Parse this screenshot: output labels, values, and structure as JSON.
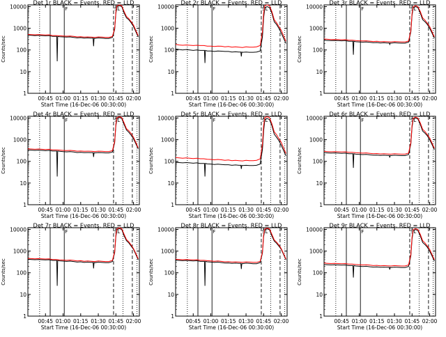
{
  "colors": {
    "events": "#000000",
    "lld": "#ff0000",
    "axes": "#000000",
    "background": "#ffffff"
  },
  "shared": {
    "ylabel": "Counts/sec",
    "xlabel": "Start Time (16-Dec-06 00:30:00)",
    "x_tick_labels": [
      "00:45",
      "01:00",
      "01:15",
      "01:30",
      "01:45",
      "02:00"
    ],
    "x_tick_values": [
      45,
      60,
      75,
      90,
      105,
      120
    ],
    "xlim": [
      30,
      125
    ],
    "y_tick_labels": [
      "1",
      "10",
      "100",
      "1000",
      "10000"
    ],
    "y_tick_values": [
      1,
      10,
      100,
      1000,
      10000
    ],
    "ylim": [
      1,
      12000
    ],
    "yscale": "log",
    "marker_labels": [
      "F",
      "SL"
    ],
    "markers": {
      "dotted": [
        40,
        111,
        123
      ],
      "solid": [
        49,
        61
      ],
      "dashed": [
        103,
        119
      ]
    },
    "times": [
      30,
      33,
      36,
      39,
      42,
      45,
      48,
      51,
      54,
      57,
      60,
      63,
      66,
      69,
      72,
      75,
      78,
      81,
      84,
      87,
      90,
      93,
      96,
      99,
      102,
      104,
      105,
      106,
      108,
      110,
      112,
      114,
      116,
      118,
      120,
      122,
      124
    ]
  },
  "chart_data": [
    {
      "type": "line",
      "title": "Det 1r BLACK = Events, RED = LLD",
      "tall": false,
      "series": [
        {
          "name": "Events",
          "values": [
            480,
            470,
            460,
            470,
            460,
            450,
            460,
            420,
            420,
            410,
            400,
            390,
            400,
            380,
            360,
            370,
            350,
            360,
            350,
            340,
            360,
            350,
            340,
            340,
            380,
            900,
            5000,
            10000,
            11000,
            10000,
            5000,
            3000,
            2500,
            1800,
            1200,
            700,
            400
          ]
        },
        {
          "name": "LLD",
          "values": [
            520,
            510,
            500,
            505,
            500,
            490,
            500,
            460,
            460,
            450,
            440,
            430,
            440,
            420,
            400,
            410,
            390,
            400,
            390,
            380,
            400,
            390,
            380,
            380,
            420,
            1000,
            6000,
            11000,
            12000,
            11000,
            6000,
            3500,
            2800,
            2000,
            1400,
            800,
            450
          ]
        }
      ],
      "dips": [
        [
          55,
          30
        ],
        [
          75,
          100
        ],
        [
          86,
          150
        ],
        [
          90,
          150
        ]
      ]
    },
    {
      "type": "line",
      "title": "Det 2r BLACK = Events, RED = LLD",
      "tall": true,
      "series": [
        {
          "name": "Events",
          "values": [
            110,
            105,
            100,
            105,
            100,
            95,
            100,
            95,
            95,
            90,
            90,
            85,
            90,
            88,
            85,
            85,
            80,
            82,
            80,
            78,
            80,
            78,
            78,
            80,
            90,
            400,
            3000,
            9000,
            10000,
            9000,
            5000,
            2000,
            1500,
            1000,
            600,
            350,
            200
          ]
        },
        {
          "name": "LLD",
          "values": [
            180,
            170,
            165,
            170,
            165,
            160,
            165,
            160,
            160,
            150,
            150,
            145,
            150,
            148,
            140,
            145,
            135,
            140,
            135,
            130,
            140,
            135,
            135,
            140,
            160,
            700,
            5000,
            11000,
            12000,
            11000,
            6000,
            2500,
            1800,
            1200,
            800,
            450,
            250
          ]
        }
      ],
      "dips": [
        [
          55,
          25
        ],
        [
          75,
          40
        ],
        [
          86,
          50
        ],
        [
          90,
          50
        ]
      ]
    },
    {
      "type": "line",
      "title": "Det 3r BLACK = Events, RED = LLD",
      "tall": false,
      "series": [
        {
          "name": "Events",
          "values": [
            280,
            275,
            270,
            275,
            270,
            265,
            270,
            250,
            250,
            240,
            235,
            230,
            235,
            225,
            215,
            220,
            210,
            215,
            210,
            205,
            215,
            210,
            205,
            205,
            230,
            700,
            4000,
            9000,
            10000,
            9000,
            5000,
            2500,
            2000,
            1500,
            1000,
            600,
            350
          ]
        },
        {
          "name": "LLD",
          "values": [
            320,
            310,
            300,
            305,
            300,
            295,
            300,
            280,
            280,
            270,
            265,
            260,
            265,
            255,
            245,
            250,
            240,
            245,
            240,
            235,
            245,
            240,
            235,
            235,
            260,
            800,
            5000,
            10000,
            11000,
            10000,
            6000,
            3000,
            2400,
            1700,
            1200,
            700,
            400
          ]
        }
      ],
      "dips": [
        [
          55,
          60
        ],
        [
          75,
          160
        ],
        [
          86,
          180
        ],
        [
          90,
          180
        ]
      ]
    },
    {
      "type": "line",
      "title": "Det 4r BLACK = Events, RED = LLD",
      "tall": false,
      "series": [
        {
          "name": "Events",
          "values": [
            340,
            330,
            320,
            330,
            320,
            310,
            320,
            300,
            300,
            290,
            280,
            275,
            280,
            270,
            255,
            260,
            250,
            255,
            250,
            245,
            255,
            250,
            245,
            245,
            270,
            750,
            4500,
            9500,
            10500,
            9500,
            5000,
            2800,
            2200,
            1600,
            1100,
            650,
            380
          ]
        },
        {
          "name": "LLD",
          "values": [
            380,
            370,
            360,
            370,
            360,
            350,
            360,
            340,
            340,
            330,
            320,
            315,
            320,
            310,
            295,
            300,
            290,
            295,
            290,
            285,
            295,
            290,
            285,
            285,
            310,
            850,
            5500,
            10500,
            11500,
            10500,
            6000,
            3200,
            2600,
            1900,
            1300,
            750,
            420
          ]
        }
      ],
      "dips": [
        [
          55,
          20
        ],
        [
          75,
          120
        ],
        [
          86,
          160
        ],
        [
          90,
          160
        ]
      ]
    },
    {
      "type": "line",
      "title": "Det 5r BLACK = Events, RED = LLD",
      "tall": true,
      "series": [
        {
          "name": "Events",
          "values": [
            90,
            88,
            85,
            88,
            85,
            82,
            85,
            80,
            80,
            76,
            75,
            72,
            74,
            72,
            70,
            70,
            66,
            68,
            66,
            64,
            66,
            64,
            64,
            66,
            75,
            350,
            2500,
            8500,
            9500,
            8500,
            4500,
            1800,
            1300,
            900,
            550,
            320,
            180
          ]
        },
        {
          "name": "LLD",
          "values": [
            150,
            145,
            140,
            145,
            140,
            135,
            140,
            132,
            132,
            125,
            122,
            118,
            122,
            118,
            112,
            115,
            108,
            112,
            108,
            105,
            112,
            108,
            108,
            112,
            130,
            600,
            4500,
            10500,
            11500,
            10500,
            5500,
            2300,
            1700,
            1100,
            750,
            420,
            230
          ]
        }
      ],
      "dips": [
        [
          55,
          20
        ],
        [
          75,
          35
        ],
        [
          86,
          45
        ],
        [
          90,
          45
        ]
      ]
    },
    {
      "type": "line",
      "title": "Det 6r BLACK = Events, RED = LLD",
      "tall": false,
      "series": [
        {
          "name": "Events",
          "values": [
            250,
            245,
            240,
            245,
            240,
            235,
            240,
            225,
            225,
            215,
            210,
            205,
            210,
            200,
            192,
            195,
            188,
            192,
            188,
            184,
            192,
            188,
            184,
            184,
            205,
            650,
            3800,
            9000,
            10000,
            9000,
            5000,
            2500,
            2000,
            1500,
            1000,
            600,
            350
          ]
        },
        {
          "name": "LLD",
          "values": [
            290,
            282,
            276,
            282,
            276,
            270,
            276,
            260,
            260,
            250,
            245,
            240,
            245,
            235,
            225,
            230,
            220,
            225,
            220,
            215,
            225,
            220,
            215,
            215,
            240,
            750,
            4800,
            10000,
            11000,
            10000,
            6000,
            3000,
            2400,
            1700,
            1200,
            700,
            400
          ]
        }
      ],
      "dips": [
        [
          55,
          50
        ],
        [
          75,
          130
        ],
        [
          86,
          150
        ],
        [
          90,
          150
        ]
      ]
    },
    {
      "type": "line",
      "title": "Det 7r BLACK = Events, RED = LLD",
      "tall": false,
      "series": [
        {
          "name": "Events",
          "values": [
            420,
            410,
            400,
            410,
            400,
            390,
            400,
            370,
            370,
            355,
            345,
            335,
            345,
            330,
            310,
            320,
            300,
            310,
            300,
            290,
            310,
            300,
            290,
            290,
            330,
            850,
            4800,
            9800,
            10800,
            9800,
            5000,
            3000,
            2400,
            1700,
            1200,
            700,
            400
          ]
        },
        {
          "name": "LLD",
          "values": [
            460,
            450,
            440,
            450,
            440,
            430,
            440,
            410,
            410,
            395,
            385,
            375,
            385,
            370,
            350,
            360,
            340,
            350,
            340,
            330,
            350,
            340,
            330,
            330,
            370,
            950,
            5800,
            10800,
            11800,
            10800,
            6000,
            3400,
            2700,
            1900,
            1300,
            780,
            440
          ]
        }
      ],
      "dips": [
        [
          55,
          25
        ],
        [
          75,
          140
        ],
        [
          86,
          160
        ],
        [
          90,
          160
        ]
      ]
    },
    {
      "type": "line",
      "title": "Det 8r BLACK = Events, RED = LLD",
      "tall": false,
      "series": [
        {
          "name": "Events",
          "values": [
            380,
            370,
            360,
            370,
            360,
            350,
            360,
            335,
            335,
            320,
            310,
            300,
            310,
            295,
            280,
            285,
            270,
            278,
            270,
            262,
            278,
            270,
            262,
            262,
            295,
            800,
            4600,
            9600,
            10600,
            9600,
            5000,
            2900,
            2300,
            1700,
            1200,
            700,
            400
          ]
        },
        {
          "name": "LLD",
          "values": [
            420,
            410,
            400,
            410,
            400,
            390,
            400,
            375,
            375,
            360,
            350,
            340,
            350,
            335,
            320,
            325,
            310,
            318,
            310,
            302,
            318,
            310,
            302,
            302,
            335,
            900,
            5600,
            10600,
            11600,
            10600,
            6000,
            3300,
            2600,
            1900,
            1300,
            760,
            430
          ]
        }
      ],
      "dips": [
        [
          55,
          25
        ],
        [
          75,
          130
        ],
        [
          86,
          150
        ],
        [
          90,
          150
        ]
      ]
    },
    {
      "type": "line",
      "title": "Det 9r BLACK = Events, RED = LLD",
      "tall": false,
      "series": [
        {
          "name": "Events",
          "values": [
            240,
            235,
            230,
            235,
            230,
            225,
            230,
            215,
            215,
            205,
            200,
            195,
            200,
            190,
            182,
            185,
            178,
            182,
            178,
            174,
            182,
            178,
            174,
            174,
            195,
            620,
            3600,
            8800,
            9800,
            8800,
            5000,
            2500,
            2000,
            1500,
            1000,
            600,
            350
          ]
        },
        {
          "name": "LLD",
          "values": [
            280,
            272,
            266,
            272,
            266,
            260,
            266,
            250,
            250,
            240,
            235,
            230,
            235,
            225,
            215,
            220,
            210,
            215,
            210,
            205,
            215,
            210,
            205,
            205,
            230,
            720,
            4600,
            9800,
            10800,
            9800,
            6000,
            3000,
            2400,
            1700,
            1200,
            700,
            400
          ]
        }
      ],
      "dips": [
        [
          55,
          60
        ],
        [
          75,
          120
        ],
        [
          86,
          140
        ],
        [
          90,
          140
        ]
      ]
    }
  ]
}
